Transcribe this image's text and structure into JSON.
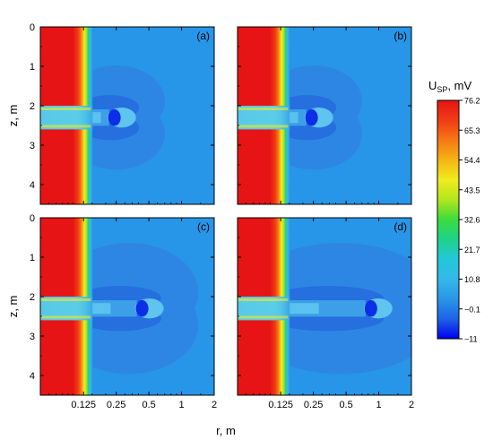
{
  "chart_data": {
    "type": "heatmap",
    "panels": [
      {
        "label": "(a)",
        "anomaly_r": 0.25
      },
      {
        "label": "(b)",
        "anomaly_r": 0.25
      },
      {
        "label": "(c)",
        "anomaly_r": 0.45
      },
      {
        "label": "(d)",
        "anomaly_r": 0.88
      }
    ],
    "xlabel": "r, m",
    "ylabel": "z, m",
    "x_scale": "log",
    "xlim": [
      0.05,
      2
    ],
    "x_ticks": [
      "0.125",
      "0.25",
      "0.5",
      "1",
      "2"
    ],
    "x_tick_values": [
      0.125,
      0.25,
      0.5,
      1,
      2
    ],
    "ylim": [
      0,
      4.5
    ],
    "y_ticks": [
      "0",
      "1",
      "2",
      "3",
      "4"
    ],
    "y_tick_values": [
      0,
      1,
      2,
      3,
      4
    ],
    "layer_z": [
      2.0,
      2.6
    ],
    "colorbar": {
      "title_main": "U",
      "title_sub": "SP",
      "title_unit": ", mV",
      "ticks": [
        "76.2",
        "65.3",
        "54.4",
        "43.5",
        "32.6",
        "21.7",
        "10.8",
        "−0.1",
        "−11"
      ],
      "tick_values": [
        76.2,
        65.3,
        54.4,
        43.5,
        32.6,
        21.7,
        10.8,
        -0.1,
        -11
      ],
      "min": -11,
      "max": 76.2,
      "colors": [
        "#0000ee",
        "#1e64e6",
        "#2896e8",
        "#35b8ea",
        "#22c8d8",
        "#1ed28a",
        "#3cdc3c",
        "#b4e61e",
        "#f0ec1e",
        "#f5b414",
        "#f57814",
        "#f03c14",
        "#e61414"
      ]
    }
  }
}
